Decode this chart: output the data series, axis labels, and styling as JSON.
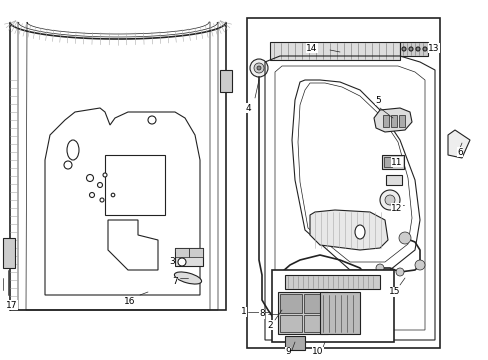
{
  "background_color": "#ffffff",
  "fig_width": 4.89,
  "fig_height": 3.6,
  "dpi": 100,
  "line_color": "#222222",
  "light_gray": "#aaaaaa",
  "mid_gray": "#888888",
  "dark_gray": "#555555",
  "fill_light": "#f0f0f0",
  "hatch_color": "#999999"
}
